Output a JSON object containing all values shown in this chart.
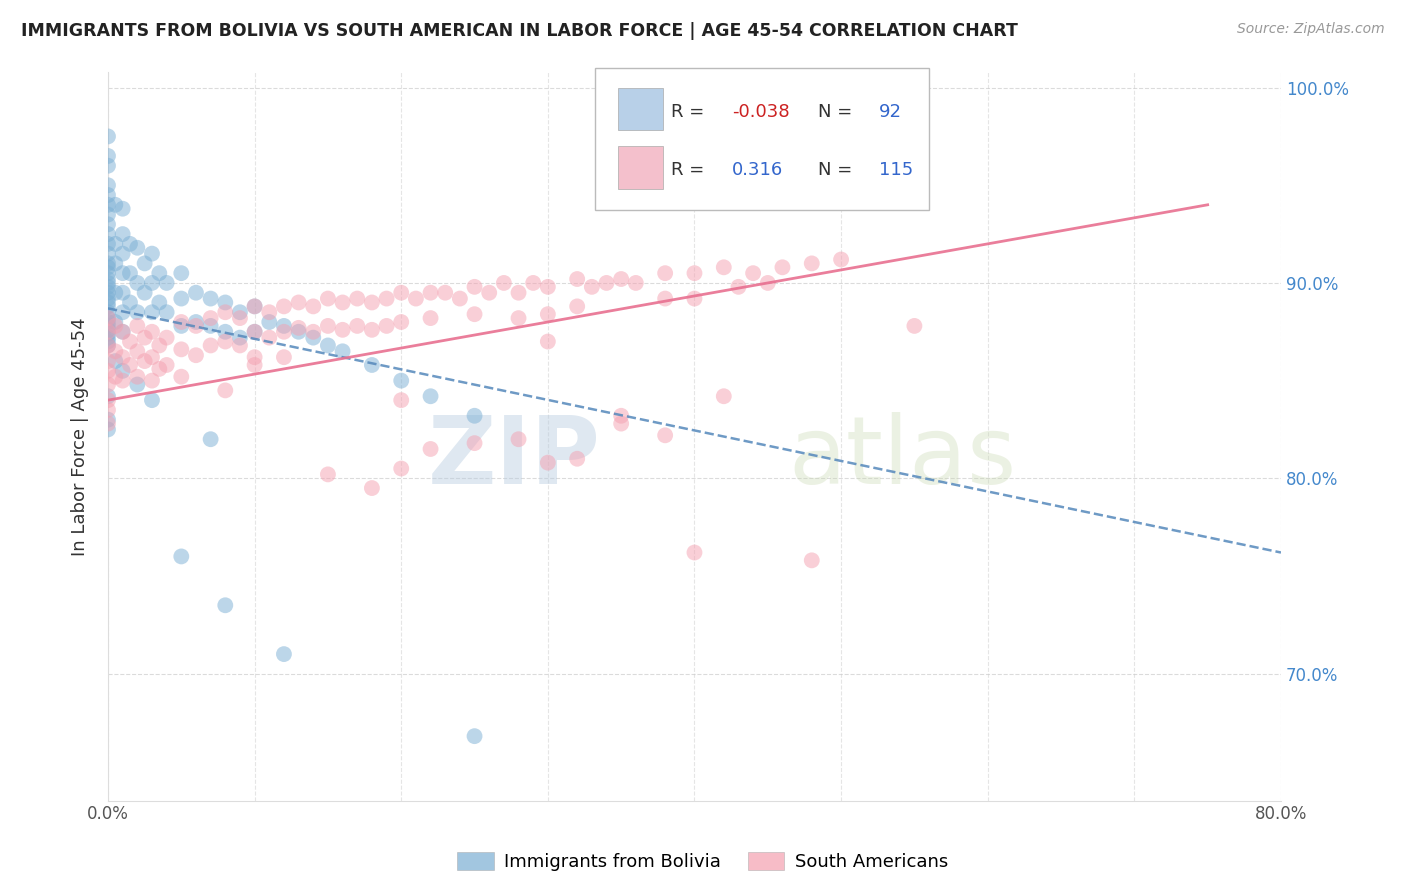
{
  "title": "IMMIGRANTS FROM BOLIVIA VS SOUTH AMERICAN IN LABOR FORCE | AGE 45-54 CORRELATION CHART",
  "source": "Source: ZipAtlas.com",
  "ylabel": "In Labor Force | Age 45-54",
  "xlim": [
    0.0,
    0.8
  ],
  "ylim": [
    0.635,
    1.008
  ],
  "blue_R": -0.038,
  "blue_N": 92,
  "pink_R": 0.316,
  "pink_N": 115,
  "blue_color": "#7BAFD4",
  "pink_color": "#F4A0B0",
  "blue_line_color": "#5588BB",
  "pink_line_color": "#E87090",
  "legend_blue_box": "#B8D0E8",
  "legend_pink_box": "#F4C0CC",
  "watermark_color": "#C8D8E8",
  "blue_scatter_x": [
    0.0,
    0.0,
    0.0,
    0.0,
    0.0,
    0.0,
    0.0,
    0.0,
    0.0,
    0.0,
    0.0,
    0.0,
    0.0,
    0.0,
    0.0,
    0.0,
    0.0,
    0.0,
    0.0,
    0.0,
    0.0,
    0.0,
    0.0,
    0.0,
    0.0,
    0.0,
    0.0,
    0.0,
    0.0,
    0.0,
    0.005,
    0.005,
    0.005,
    0.005,
    0.005,
    0.01,
    0.01,
    0.01,
    0.01,
    0.01,
    0.01,
    0.01,
    0.015,
    0.015,
    0.015,
    0.02,
    0.02,
    0.02,
    0.025,
    0.025,
    0.03,
    0.03,
    0.03,
    0.035,
    0.035,
    0.04,
    0.04,
    0.05,
    0.05,
    0.05,
    0.06,
    0.06,
    0.07,
    0.07,
    0.08,
    0.08,
    0.09,
    0.09,
    0.1,
    0.1,
    0.11,
    0.12,
    0.13,
    0.14,
    0.15,
    0.16,
    0.18,
    0.2,
    0.22,
    0.25,
    0.05,
    0.08,
    0.12,
    0.0,
    0.0,
    0.0,
    0.005,
    0.01,
    0.02,
    0.03,
    0.07,
    0.25
  ],
  "blue_scatter_y": [
    0.975,
    0.965,
    0.96,
    0.95,
    0.945,
    0.94,
    0.935,
    0.93,
    0.925,
    0.92,
    0.915,
    0.91,
    0.908,
    0.905,
    0.902,
    0.9,
    0.898,
    0.895,
    0.892,
    0.89,
    0.888,
    0.885,
    0.882,
    0.88,
    0.878,
    0.876,
    0.874,
    0.872,
    0.87,
    0.868,
    0.94,
    0.92,
    0.91,
    0.895,
    0.88,
    0.938,
    0.925,
    0.915,
    0.905,
    0.895,
    0.885,
    0.875,
    0.92,
    0.905,
    0.89,
    0.918,
    0.9,
    0.885,
    0.91,
    0.895,
    0.915,
    0.9,
    0.885,
    0.905,
    0.89,
    0.9,
    0.885,
    0.905,
    0.892,
    0.878,
    0.895,
    0.88,
    0.892,
    0.878,
    0.89,
    0.875,
    0.885,
    0.872,
    0.888,
    0.875,
    0.88,
    0.878,
    0.875,
    0.872,
    0.868,
    0.865,
    0.858,
    0.85,
    0.842,
    0.832,
    0.76,
    0.735,
    0.71,
    0.842,
    0.83,
    0.825,
    0.86,
    0.855,
    0.848,
    0.84,
    0.82,
    0.668
  ],
  "pink_scatter_x": [
    0.0,
    0.0,
    0.0,
    0.0,
    0.0,
    0.0,
    0.0,
    0.0,
    0.0,
    0.005,
    0.005,
    0.005,
    0.01,
    0.01,
    0.01,
    0.015,
    0.015,
    0.02,
    0.02,
    0.02,
    0.025,
    0.025,
    0.03,
    0.03,
    0.03,
    0.035,
    0.035,
    0.04,
    0.04,
    0.05,
    0.05,
    0.05,
    0.06,
    0.06,
    0.07,
    0.07,
    0.08,
    0.08,
    0.09,
    0.09,
    0.1,
    0.1,
    0.1,
    0.11,
    0.11,
    0.12,
    0.12,
    0.13,
    0.13,
    0.14,
    0.14,
    0.15,
    0.15,
    0.16,
    0.16,
    0.17,
    0.17,
    0.18,
    0.18,
    0.19,
    0.19,
    0.2,
    0.2,
    0.21,
    0.22,
    0.22,
    0.23,
    0.24,
    0.25,
    0.25,
    0.26,
    0.27,
    0.28,
    0.28,
    0.29,
    0.3,
    0.3,
    0.32,
    0.32,
    0.33,
    0.34,
    0.35,
    0.36,
    0.38,
    0.38,
    0.4,
    0.4,
    0.42,
    0.43,
    0.44,
    0.45,
    0.46,
    0.48,
    0.5,
    0.35,
    0.28,
    0.42,
    0.15,
    0.22,
    0.3,
    0.38,
    0.18,
    0.32,
    0.25,
    0.2,
    0.35,
    0.1,
    0.08,
    0.12,
    0.48,
    0.4,
    0.55,
    0.2,
    0.3
  ],
  "pink_scatter_y": [
    0.882,
    0.875,
    0.868,
    0.86,
    0.855,
    0.848,
    0.84,
    0.835,
    0.828,
    0.878,
    0.865,
    0.852,
    0.875,
    0.862,
    0.85,
    0.87,
    0.858,
    0.878,
    0.865,
    0.852,
    0.872,
    0.86,
    0.875,
    0.862,
    0.85,
    0.868,
    0.856,
    0.872,
    0.858,
    0.88,
    0.866,
    0.852,
    0.878,
    0.863,
    0.882,
    0.868,
    0.885,
    0.87,
    0.882,
    0.868,
    0.888,
    0.875,
    0.862,
    0.885,
    0.872,
    0.888,
    0.875,
    0.89,
    0.877,
    0.888,
    0.875,
    0.892,
    0.878,
    0.89,
    0.876,
    0.892,
    0.878,
    0.89,
    0.876,
    0.892,
    0.878,
    0.895,
    0.88,
    0.892,
    0.895,
    0.882,
    0.895,
    0.892,
    0.898,
    0.884,
    0.895,
    0.9,
    0.895,
    0.882,
    0.9,
    0.898,
    0.884,
    0.902,
    0.888,
    0.898,
    0.9,
    0.902,
    0.9,
    0.905,
    0.892,
    0.905,
    0.892,
    0.908,
    0.898,
    0.905,
    0.9,
    0.908,
    0.91,
    0.912,
    0.828,
    0.82,
    0.842,
    0.802,
    0.815,
    0.808,
    0.822,
    0.795,
    0.81,
    0.818,
    0.805,
    0.832,
    0.858,
    0.845,
    0.862,
    0.758,
    0.762,
    0.878,
    0.84,
    0.87
  ]
}
